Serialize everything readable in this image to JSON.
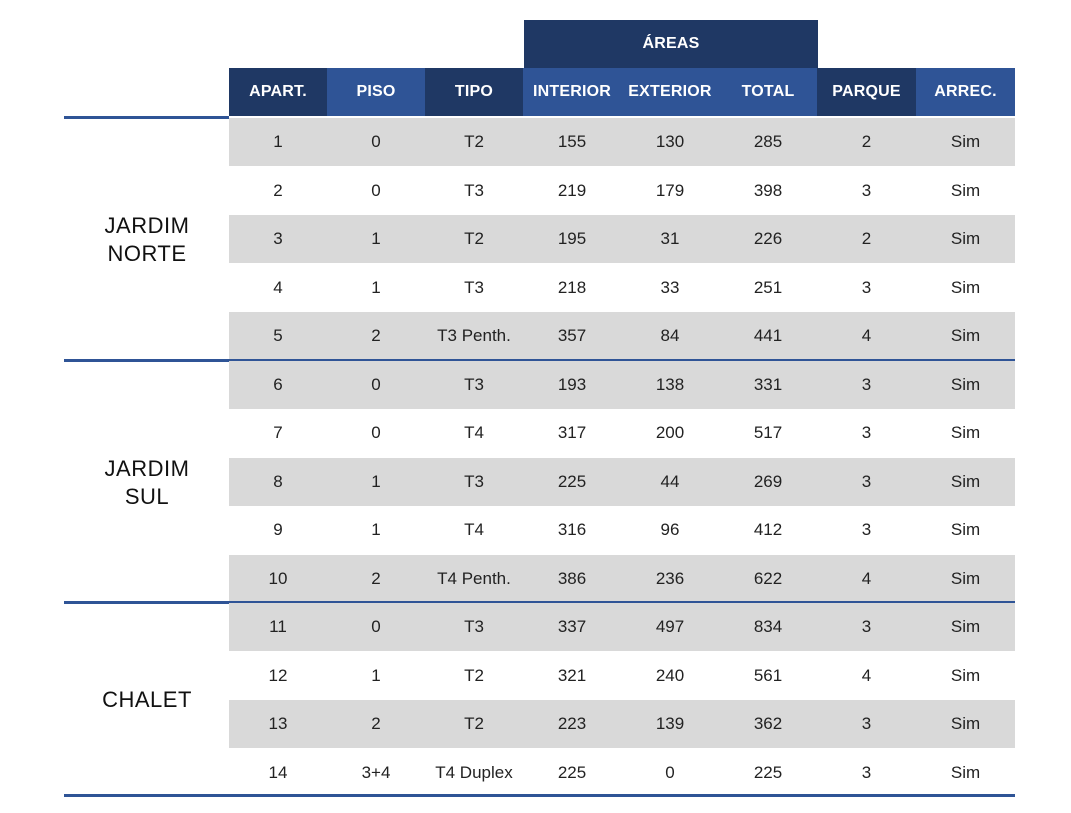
{
  "header": {
    "group_label": "ÁREAS",
    "columns": [
      "APART.",
      "PISO",
      "TIPO",
      "INTERIOR",
      "EXTERIOR",
      "TOTAL",
      "PARQUE",
      "ARREC."
    ]
  },
  "groups": [
    {
      "label": "JARDIM\nNORTE",
      "rows": [
        [
          "1",
          "0",
          "T2",
          "155",
          "130",
          "285",
          "2",
          "Sim"
        ],
        [
          "2",
          "0",
          "T3",
          "219",
          "179",
          "398",
          "3",
          "Sim"
        ],
        [
          "3",
          "1",
          "T2",
          "195",
          "31",
          "226",
          "2",
          "Sim"
        ],
        [
          "4",
          "1",
          "T3",
          "218",
          "33",
          "251",
          "3",
          "Sim"
        ],
        [
          "5",
          "2",
          "T3 Penth.",
          "357",
          "84",
          "441",
          "4",
          "Sim"
        ]
      ]
    },
    {
      "label": "JARDIM\nSUL",
      "rows": [
        [
          "6",
          "0",
          "T3",
          "193",
          "138",
          "331",
          "3",
          "Sim"
        ],
        [
          "7",
          "0",
          "T4",
          "317",
          "200",
          "517",
          "3",
          "Sim"
        ],
        [
          "8",
          "1",
          "T3",
          "225",
          "44",
          "269",
          "3",
          "Sim"
        ],
        [
          "9",
          "1",
          "T4",
          "316",
          "96",
          "412",
          "3",
          "Sim"
        ],
        [
          "10",
          "2",
          "T4 Penth.",
          "386",
          "236",
          "622",
          "4",
          "Sim"
        ]
      ]
    },
    {
      "label": "CHALET",
      "rows": [
        [
          "11",
          "0",
          "T3",
          "337",
          "497",
          "834",
          "3",
          "Sim"
        ],
        [
          "12",
          "1",
          "T2",
          "321",
          "240",
          "561",
          "4",
          "Sim"
        ],
        [
          "13",
          "2",
          "T2",
          "223",
          "139",
          "362",
          "3",
          "Sim"
        ],
        [
          "14",
          "3+4",
          "T4 Duplex",
          "225",
          "0",
          "225",
          "3",
          "Sim"
        ]
      ]
    }
  ],
  "colors": {
    "header_dark": "#1f3864",
    "header_mid": "#2f5496",
    "row_shade": "#d9d9d9"
  }
}
